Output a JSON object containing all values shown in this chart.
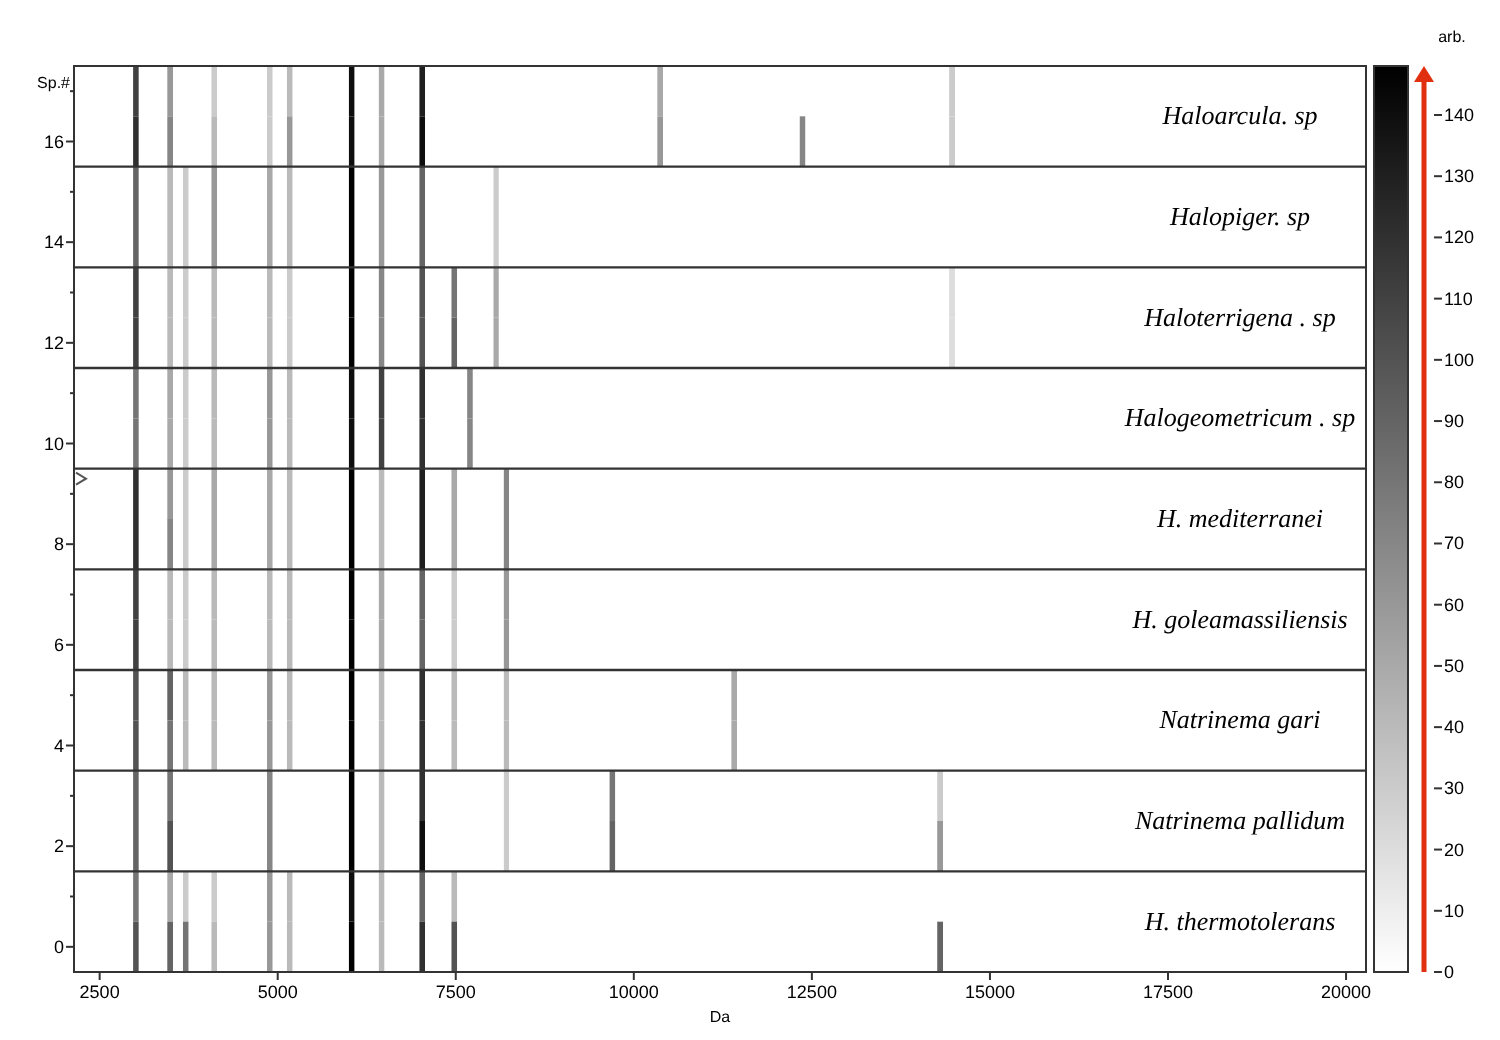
{
  "chart_data": {
    "type": "heatmap",
    "xlabel": "Da",
    "ylabel": "Sp.#",
    "clabel": "arb.",
    "x": [
      2930,
      3010,
      3090,
      3410,
      3490,
      3570,
      3630,
      3710,
      3790,
      4030,
      4110,
      4190,
      4810,
      4890,
      4970,
      5090,
      5170,
      5250,
      5960,
      6040,
      6120,
      6380,
      6460,
      6540,
      6950,
      7030,
      7110,
      7400,
      7480,
      7560,
      7620,
      7700,
      7780,
      7990,
      8070,
      8140,
      8210,
      8290,
      9620,
      9700,
      9780,
      10290,
      10370,
      10450,
      11330,
      11410,
      11490,
      12290,
      12370,
      12450,
      14220,
      14300,
      14385,
      14470,
      14550
    ],
    "xlim": [
      2140,
      20280
    ],
    "xticks": [
      2500,
      5000,
      7500,
      10000,
      12500,
      15000,
      17500,
      20000
    ],
    "y_categories": [
      null,
      "16",
      null,
      "14",
      null,
      "12",
      null,
      "10",
      null,
      "8",
      null,
      "6",
      null,
      "4",
      null,
      "2",
      null,
      "0"
    ],
    "clim": [
      0,
      148
    ],
    "cticks": [
      0,
      10,
      20,
      30,
      40,
      50,
      60,
      70,
      80,
      90,
      100,
      110,
      120,
      130,
      140
    ],
    "cells": [
      [
        0,
        110,
        0,
        0,
        60,
        0,
        0,
        0,
        0,
        0,
        30,
        0,
        0,
        30,
        0,
        0,
        40,
        0,
        0,
        140,
        0,
        0,
        50,
        0,
        0,
        130,
        0,
        0,
        0,
        0,
        0,
        0,
        0,
        0,
        0,
        0,
        0,
        0,
        0,
        0,
        0,
        0,
        50,
        0,
        0,
        0,
        0,
        0,
        0,
        0,
        0,
        0,
        0,
        30,
        0
      ],
      [
        0,
        120,
        0,
        0,
        70,
        0,
        0,
        0,
        0,
        0,
        40,
        0,
        0,
        30,
        0,
        0,
        60,
        0,
        0,
        140,
        0,
        0,
        50,
        0,
        0,
        140,
        0,
        0,
        0,
        0,
        0,
        0,
        0,
        0,
        0,
        0,
        0,
        0,
        0,
        0,
        0,
        0,
        60,
        0,
        0,
        0,
        0,
        0,
        70,
        0,
        0,
        0,
        0,
        30,
        0
      ],
      [
        0,
        90,
        0,
        0,
        40,
        0,
        0,
        30,
        0,
        0,
        60,
        0,
        0,
        50,
        0,
        0,
        40,
        0,
        0,
        148,
        0,
        0,
        60,
        0,
        0,
        90,
        0,
        0,
        0,
        0,
        0,
        0,
        0,
        0,
        30,
        0,
        0,
        0,
        0,
        0,
        0,
        0,
        0,
        0,
        0,
        0,
        0,
        0,
        0,
        0,
        0,
        0,
        0,
        0,
        0
      ],
      [
        0,
        90,
        0,
        0,
        40,
        0,
        0,
        30,
        0,
        0,
        60,
        0,
        0,
        50,
        0,
        0,
        40,
        0,
        0,
        148,
        0,
        0,
        60,
        0,
        0,
        90,
        0,
        0,
        0,
        0,
        0,
        0,
        0,
        0,
        30,
        0,
        0,
        0,
        0,
        0,
        0,
        0,
        0,
        0,
        0,
        0,
        0,
        0,
        0,
        0,
        0,
        0,
        0,
        0,
        0
      ],
      [
        0,
        110,
        0,
        0,
        40,
        0,
        0,
        30,
        0,
        0,
        40,
        0,
        0,
        40,
        0,
        0,
        30,
        0,
        0,
        148,
        0,
        0,
        70,
        0,
        0,
        100,
        0,
        0,
        80,
        0,
        0,
        0,
        0,
        0,
        50,
        0,
        0,
        0,
        0,
        0,
        0,
        0,
        0,
        0,
        0,
        0,
        0,
        0,
        0,
        0,
        0,
        0,
        0,
        20,
        0
      ],
      [
        0,
        110,
        0,
        0,
        40,
        0,
        0,
        30,
        0,
        0,
        40,
        0,
        0,
        40,
        0,
        0,
        30,
        0,
        0,
        148,
        0,
        0,
        70,
        0,
        0,
        100,
        0,
        0,
        90,
        0,
        0,
        0,
        0,
        0,
        50,
        0,
        0,
        0,
        0,
        0,
        0,
        0,
        0,
        0,
        0,
        0,
        0,
        0,
        0,
        0,
        0,
        0,
        0,
        20,
        0
      ],
      [
        0,
        80,
        0,
        0,
        50,
        0,
        0,
        30,
        0,
        0,
        40,
        0,
        0,
        60,
        0,
        0,
        40,
        0,
        0,
        140,
        0,
        0,
        110,
        0,
        0,
        120,
        0,
        0,
        0,
        0,
        0,
        70,
        0,
        0,
        0,
        0,
        0,
        0,
        0,
        0,
        0,
        0,
        0,
        0,
        0,
        0,
        0,
        0,
        0,
        0,
        0,
        0,
        0,
        0,
        0
      ],
      [
        0,
        80,
        0,
        0,
        50,
        0,
        0,
        30,
        0,
        0,
        40,
        0,
        0,
        60,
        0,
        0,
        40,
        0,
        0,
        140,
        0,
        0,
        110,
        0,
        0,
        120,
        0,
        0,
        0,
        0,
        0,
        70,
        0,
        0,
        0,
        0,
        0,
        0,
        0,
        0,
        0,
        0,
        0,
        0,
        0,
        0,
        0,
        0,
        0,
        0,
        0,
        0,
        0,
        0,
        0
      ],
      [
        0,
        120,
        0,
        0,
        60,
        0,
        0,
        30,
        0,
        0,
        50,
        0,
        0,
        50,
        0,
        0,
        40,
        0,
        0,
        148,
        0,
        0,
        40,
        0,
        0,
        130,
        0,
        0,
        50,
        0,
        0,
        0,
        0,
        0,
        0,
        0,
        70,
        0,
        0,
        0,
        0,
        0,
        0,
        0,
        0,
        0,
        0,
        0,
        0,
        0,
        0,
        0,
        0,
        0,
        0
      ],
      [
        0,
        120,
        0,
        0,
        70,
        0,
        0,
        30,
        0,
        0,
        50,
        0,
        0,
        50,
        0,
        0,
        40,
        0,
        0,
        148,
        0,
        0,
        40,
        0,
        0,
        130,
        0,
        0,
        50,
        0,
        0,
        0,
        0,
        0,
        0,
        0,
        70,
        0,
        0,
        0,
        0,
        0,
        0,
        0,
        0,
        0,
        0,
        0,
        0,
        0,
        0,
        0,
        0,
        0,
        0
      ],
      [
        0,
        110,
        0,
        0,
        40,
        0,
        0,
        30,
        0,
        0,
        40,
        0,
        0,
        40,
        0,
        0,
        40,
        0,
        0,
        148,
        0,
        0,
        50,
        0,
        0,
        90,
        0,
        0,
        30,
        0,
        0,
        0,
        0,
        0,
        0,
        0,
        60,
        0,
        0,
        0,
        0,
        0,
        0,
        0,
        0,
        0,
        0,
        0,
        0,
        0,
        0,
        0,
        0,
        0,
        0
      ],
      [
        0,
        110,
        0,
        0,
        40,
        0,
        0,
        30,
        0,
        0,
        40,
        0,
        0,
        40,
        0,
        0,
        40,
        0,
        0,
        148,
        0,
        0,
        50,
        0,
        0,
        90,
        0,
        0,
        30,
        0,
        0,
        0,
        0,
        0,
        0,
        0,
        60,
        0,
        0,
        0,
        0,
        0,
        0,
        0,
        0,
        0,
        0,
        0,
        0,
        0,
        0,
        0,
        0,
        0,
        0
      ],
      [
        0,
        100,
        0,
        0,
        90,
        0,
        0,
        40,
        0,
        0,
        40,
        0,
        0,
        60,
        0,
        0,
        40,
        0,
        0,
        148,
        0,
        0,
        40,
        0,
        0,
        120,
        0,
        0,
        40,
        0,
        0,
        0,
        0,
        0,
        0,
        0,
        40,
        0,
        0,
        0,
        0,
        0,
        0,
        0,
        0,
        50,
        0,
        0,
        0,
        0,
        0,
        0,
        0,
        0,
        0
      ],
      [
        0,
        100,
        0,
        0,
        80,
        0,
        0,
        40,
        0,
        0,
        40,
        0,
        0,
        60,
        0,
        0,
        40,
        0,
        0,
        148,
        0,
        0,
        40,
        0,
        0,
        120,
        0,
        0,
        40,
        0,
        0,
        0,
        0,
        0,
        0,
        0,
        40,
        0,
        0,
        0,
        0,
        0,
        0,
        0,
        0,
        50,
        0,
        0,
        0,
        0,
        0,
        0,
        0,
        0,
        0
      ],
      [
        0,
        90,
        0,
        0,
        80,
        0,
        0,
        0,
        0,
        0,
        0,
        0,
        0,
        70,
        0,
        0,
        0,
        0,
        0,
        148,
        0,
        0,
        40,
        0,
        0,
        120,
        0,
        0,
        0,
        0,
        0,
        0,
        0,
        0,
        0,
        0,
        30,
        0,
        0,
        80,
        0,
        0,
        0,
        0,
        0,
        0,
        0,
        0,
        0,
        0,
        0,
        30,
        0,
        0,
        0
      ],
      [
        0,
        90,
        0,
        0,
        100,
        0,
        0,
        0,
        0,
        0,
        0,
        0,
        0,
        70,
        0,
        0,
        0,
        0,
        0,
        148,
        0,
        0,
        40,
        0,
        0,
        140,
        0,
        0,
        0,
        0,
        0,
        0,
        0,
        0,
        0,
        0,
        30,
        0,
        0,
        90,
        0,
        0,
        0,
        0,
        0,
        0,
        0,
        0,
        0,
        0,
        0,
        60,
        0,
        0,
        0
      ],
      [
        0,
        80,
        0,
        0,
        50,
        0,
        0,
        30,
        0,
        0,
        30,
        0,
        0,
        60,
        0,
        0,
        40,
        0,
        0,
        140,
        0,
        0,
        40,
        0,
        0,
        90,
        0,
        0,
        40,
        0,
        0,
        0,
        0,
        0,
        0,
        0,
        0,
        0,
        0,
        0,
        0,
        0,
        0,
        0,
        0,
        0,
        0,
        0,
        0,
        0,
        0,
        0,
        0,
        0,
        0
      ],
      [
        0,
        100,
        0,
        0,
        90,
        0,
        0,
        80,
        0,
        0,
        40,
        0,
        0,
        60,
        0,
        0,
        40,
        0,
        0,
        148,
        0,
        0,
        40,
        0,
        0,
        120,
        0,
        0,
        100,
        0,
        0,
        0,
        0,
        0,
        0,
        0,
        0,
        0,
        0,
        0,
        0,
        0,
        0,
        0,
        0,
        0,
        0,
        0,
        0,
        0,
        0,
        90,
        0,
        0,
        0
      ]
    ],
    "annotations": [
      "Haloarcula. sp",
      "Halopiger. sp",
      "Haloterrigena . sp",
      "Halogeometricum . sp",
      "H.  mediterranei",
      "H. goleamassiliensis",
      "Natrinema gari",
      "Natrinema pallidum",
      "H.  thermotolerans"
    ]
  }
}
